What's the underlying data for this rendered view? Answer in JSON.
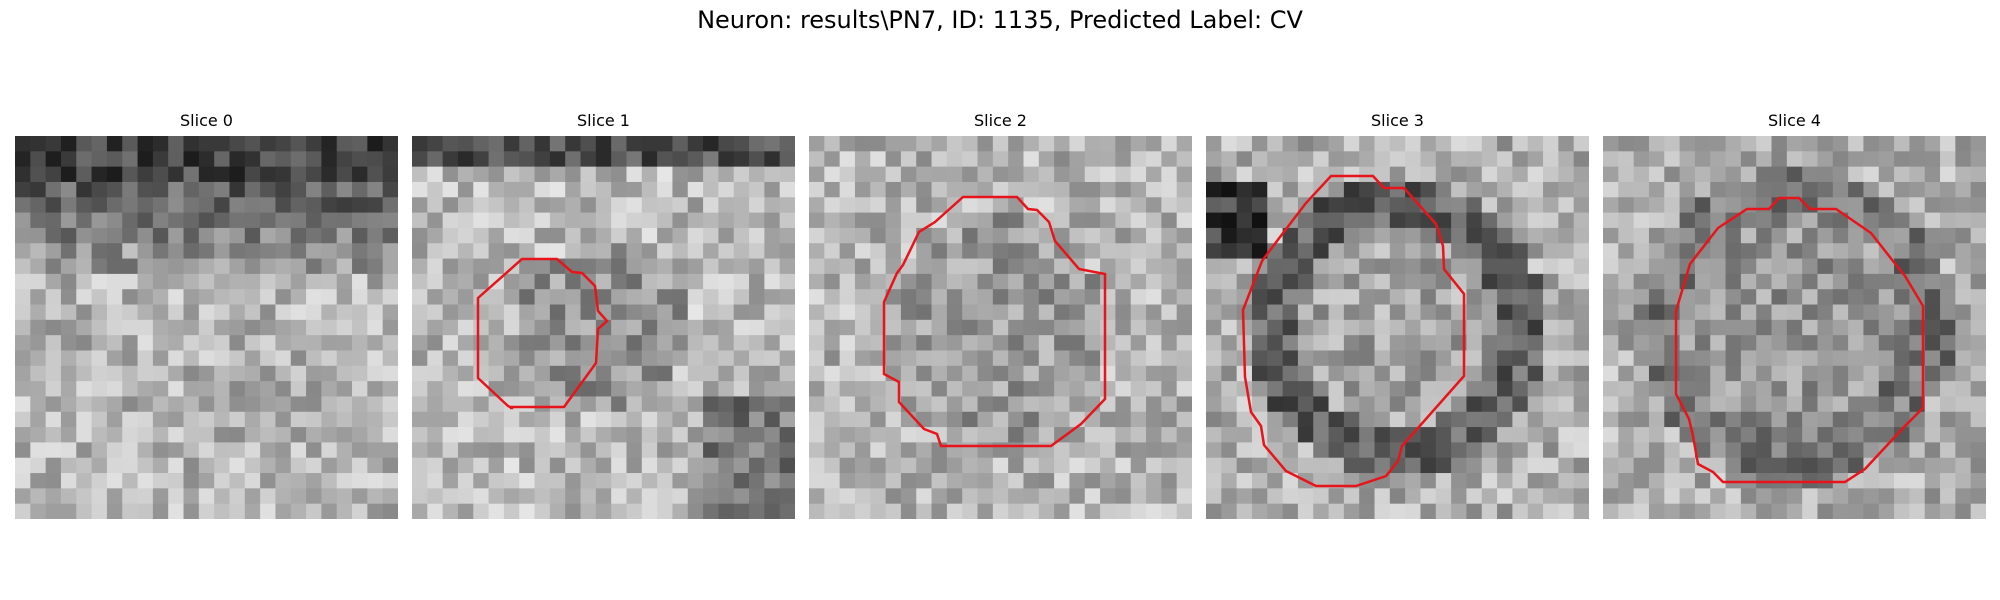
{
  "figure": {
    "title": "Neuron: results\\PN7, ID: 1135, Predicted Label: CV"
  },
  "slices": [
    {
      "title": "Slice 0",
      "has_contour": false
    },
    {
      "title": "Slice 1",
      "has_contour": true
    },
    {
      "title": "Slice 2",
      "has_contour": true
    },
    {
      "title": "Slice 3",
      "has_contour": true
    },
    {
      "title": "Slice 4",
      "has_contour": true
    }
  ],
  "colors": {
    "contour": "#e8141b",
    "background": "#ffffff"
  },
  "image_style": "grayscale microscopy pixel grid with red segmentation contour"
}
